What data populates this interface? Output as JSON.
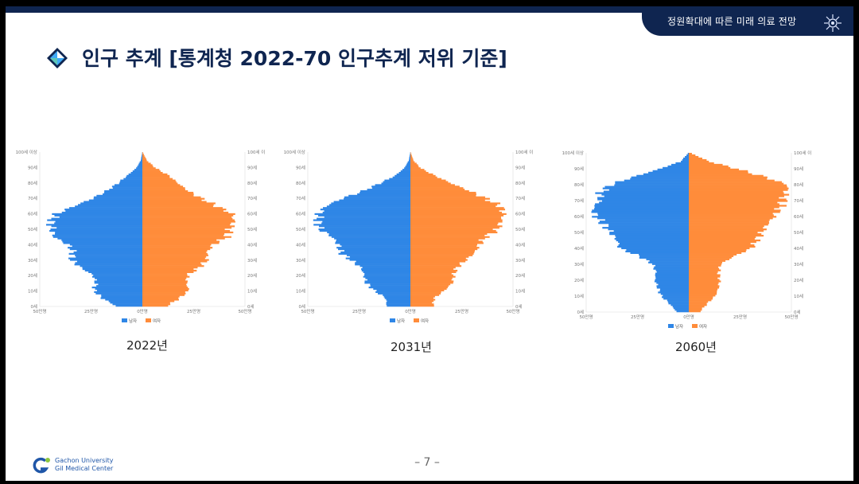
{
  "header": {
    "section_label": "정원확대에 따른 미래 의료 전망",
    "icon": "virus-icon"
  },
  "title": "인구 추계 [통계청 2022-70 인구추계 저위 기준]",
  "page_number": "– 7 –",
  "logo": {
    "line1": "Gachon University",
    "line2": "Gil Medical Center"
  },
  "colors": {
    "male": "#2f86e6",
    "female": "#ff8c3a",
    "navy": "#0f2550"
  },
  "charts": [
    {
      "caption": "2022년",
      "legend": [
        "남자",
        "여자"
      ]
    },
    {
      "caption": "2031년",
      "legend": [
        "남자",
        "여자"
      ]
    },
    {
      "caption": "2060년",
      "legend": [
        "남자",
        "여자"
      ]
    }
  ],
  "chart_data": [
    {
      "type": "bar",
      "orientation": "horizontal-population-pyramid",
      "title": "2022년",
      "age_tick_labels": [
        "0세",
        "10세",
        "20세",
        "30세",
        "40세",
        "50세",
        "60세",
        "70세",
        "80세",
        "90세",
        "100세 이상"
      ],
      "x_tick_labels": [
        "50만명",
        "25만명",
        "0만명",
        "25만명",
        "50만명"
      ],
      "xlim_thousands": [
        -500,
        500
      ],
      "ages": [
        0,
        5,
        10,
        15,
        20,
        25,
        30,
        35,
        40,
        45,
        50,
        55,
        60,
        65,
        70,
        75,
        80,
        85,
        90,
        95,
        100
      ],
      "series": [
        {
          "name": "남자",
          "values_thousands": [
            130,
            195,
            235,
            225,
            240,
            300,
            345,
            335,
            360,
            430,
            440,
            445,
            420,
            335,
            245,
            175,
            120,
            75,
            30,
            8,
            1
          ]
        },
        {
          "name": "여자",
          "values_thousands": [
            120,
            180,
            225,
            215,
            220,
            275,
            315,
            315,
            345,
            410,
            425,
            445,
            440,
            365,
            290,
            225,
            175,
            130,
            65,
            22,
            3
          ]
        }
      ]
    },
    {
      "type": "bar",
      "orientation": "horizontal-population-pyramid",
      "title": "2031년",
      "age_tick_labels": [
        "0세",
        "10세",
        "20세",
        "30세",
        "40세",
        "50세",
        "60세",
        "70세",
        "80세",
        "90세",
        "100세 이상"
      ],
      "x_tick_labels": [
        "50만명",
        "25만명",
        "0만명",
        "25만명",
        "50만명"
      ],
      "xlim_thousands": [
        -500,
        500
      ],
      "ages": [
        0,
        5,
        10,
        15,
        20,
        25,
        30,
        35,
        40,
        45,
        50,
        55,
        60,
        65,
        70,
        75,
        80,
        85,
        90,
        95,
        100
      ],
      "series": [
        {
          "name": "남자",
          "values_thousands": [
            115,
            120,
            175,
            215,
            225,
            240,
            290,
            340,
            350,
            380,
            440,
            450,
            445,
            415,
            335,
            230,
            150,
            75,
            30,
            8,
            1
          ]
        },
        {
          "name": "여자",
          "values_thousands": [
            110,
            115,
            165,
            205,
            210,
            225,
            270,
            315,
            335,
            365,
            425,
            440,
            455,
            440,
            370,
            290,
            200,
            120,
            50,
            15,
            2
          ]
        }
      ]
    },
    {
      "type": "bar",
      "orientation": "horizontal-population-pyramid",
      "title": "2060년",
      "age_tick_labels": [
        "0세",
        "10세",
        "20세",
        "30세",
        "40세",
        "50세",
        "60세",
        "70세",
        "80세",
        "90세",
        "100세 이상"
      ],
      "x_tick_labels": [
        "50만명",
        "25만명",
        "0만명",
        "25만명",
        "50만명"
      ],
      "xlim_thousands": [
        -500,
        500
      ],
      "ages": [
        0,
        5,
        10,
        15,
        20,
        25,
        30,
        35,
        40,
        45,
        50,
        55,
        60,
        65,
        70,
        75,
        80,
        85,
        90,
        95,
        100
      ],
      "series": [
        {
          "name": "남자",
          "values_thousands": [
            60,
            95,
            135,
            150,
            165,
            160,
            175,
            240,
            335,
            350,
            380,
            410,
            450,
            470,
            435,
            430,
            385,
            275,
            150,
            40,
            5
          ]
        },
        {
          "name": "여자",
          "values_thousands": [
            55,
            90,
            130,
            145,
            150,
            145,
            155,
            220,
            305,
            330,
            355,
            380,
            415,
            440,
            460,
            470,
            485,
            375,
            245,
            100,
            15
          ]
        }
      ]
    }
  ]
}
